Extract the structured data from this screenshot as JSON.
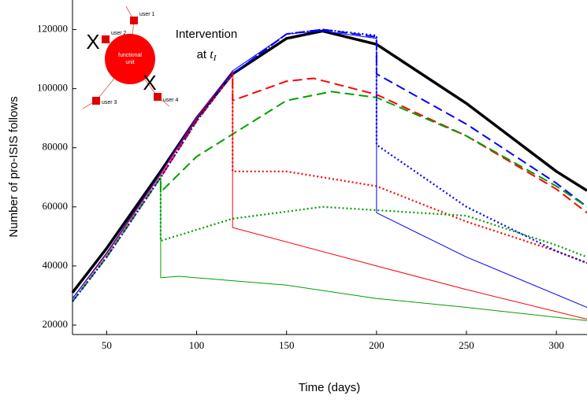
{
  "chart_data": {
    "type": "line",
    "xlabel": "Time (days)",
    "ylabel": "Number of pro-ISIS follows",
    "xlim": [
      31,
      317
    ],
    "ylim": [
      16800,
      130000
    ],
    "xticks": [
      50,
      100,
      150,
      200,
      250,
      300
    ],
    "yticks": [
      20000,
      40000,
      60000,
      80000,
      100000,
      120000
    ],
    "annotation": [
      "Intervention",
      "at"
    ],
    "annotation_math": {
      "symbol": "t",
      "subscript": "I"
    },
    "inset": {
      "unit": [
        "functional",
        "unit"
      ],
      "users": [
        "user 1",
        "user 2",
        "user 3",
        "user 4"
      ],
      "marks": [
        "X",
        "X"
      ]
    },
    "series": [
      {
        "color": "#000000",
        "style": "solid",
        "width": 3.5,
        "x": [
          31,
          50,
          80,
          100,
          120,
          150,
          170,
          200,
          250,
          300,
          317
        ],
        "values": [
          31000,
          46000,
          72000,
          90000,
          105000,
          117000,
          119500,
          115000,
          95000,
          72000,
          65500
        ]
      },
      {
        "color": "#0000ff",
        "style": "dashed",
        "width": 2,
        "x": [
          31,
          50,
          80,
          100,
          120,
          150,
          170,
          200,
          200,
          250,
          300,
          317
        ],
        "values": [
          28000,
          43000,
          70000,
          89000,
          105000,
          118500,
          120000,
          117500,
          105000,
          88000,
          68000,
          60000
        ]
      },
      {
        "color": "#ff0000",
        "style": "dashed",
        "width": 2,
        "x": [
          31,
          50,
          80,
          100,
          120,
          120,
          150,
          165,
          200,
          250,
          300,
          317
        ],
        "values": [
          28000,
          43000,
          70000,
          89000,
          105000,
          96000,
          102500,
          103500,
          98000,
          84000,
          66000,
          58000
        ]
      },
      {
        "color": "#00a000",
        "style": "dashed",
        "width": 2,
        "x": [
          31,
          50,
          80,
          80,
          100,
          150,
          175,
          200,
          250,
          300,
          317
        ],
        "values": [
          28000,
          43000,
          70000,
          65000,
          77000,
          96000,
          99000,
          97000,
          84000,
          67000,
          60000
        ]
      },
      {
        "color": "#ff0000",
        "style": "dotted",
        "width": 2.2,
        "x": [
          31,
          50,
          80,
          100,
          120,
          120,
          150,
          200,
          250,
          300,
          317
        ],
        "values": [
          28000,
          43000,
          70000,
          89000,
          105000,
          72000,
          72000,
          67000,
          55000,
          45000,
          41000
        ]
      },
      {
        "color": "#00a000",
        "style": "dotted",
        "width": 2.2,
        "x": [
          31,
          50,
          80,
          80,
          120,
          170,
          250,
          300,
          317
        ],
        "values": [
          28000,
          43000,
          70000,
          48500,
          56000,
          60000,
          57000,
          47000,
          43000
        ]
      },
      {
        "color": "#0000ff",
        "style": "dotted",
        "width": 2.2,
        "x": [
          31,
          50,
          80,
          100,
          120,
          150,
          170,
          200,
          200,
          250,
          300,
          317
        ],
        "values": [
          28000,
          43000,
          70000,
          89000,
          105000,
          118500,
          120000,
          118000,
          81000,
          60000,
          45000,
          41000
        ]
      },
      {
        "color": "#00a000",
        "style": "solid",
        "width": 1,
        "x": [
          31,
          50,
          80,
          80,
          90,
          150,
          200,
          250,
          317
        ],
        "values": [
          29000,
          44000,
          71000,
          36000,
          36500,
          33500,
          29000,
          26000,
          21500
        ]
      },
      {
        "color": "#ff0000",
        "style": "solid",
        "width": 1,
        "x": [
          31,
          50,
          80,
          100,
          120,
          120,
          200,
          250,
          317
        ],
        "values": [
          29000,
          44000,
          71000,
          90000,
          106000,
          53000,
          40000,
          32000,
          22000
        ]
      },
      {
        "color": "#0000ff",
        "style": "solid",
        "width": 1,
        "x": [
          31,
          50,
          80,
          100,
          120,
          150,
          170,
          200,
          200,
          250,
          317
        ],
        "values": [
          29000,
          44500,
          71500,
          90500,
          106000,
          118500,
          119500,
          117000,
          58000,
          43000,
          26000
        ]
      }
    ]
  }
}
